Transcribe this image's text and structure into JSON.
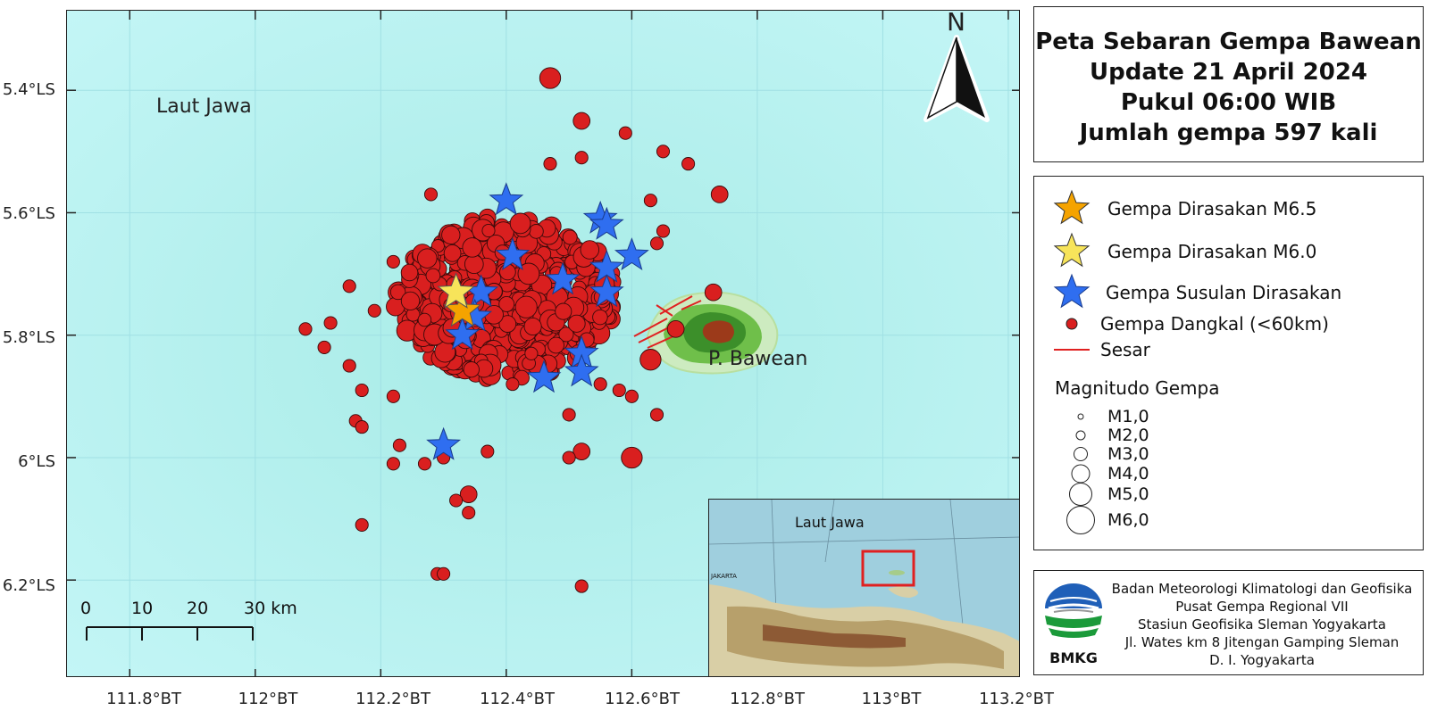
{
  "title": {
    "line1": "Peta Sebaran Gempa Bawean",
    "line2": "Update 21 April 2024",
    "line3": "Pukul 06:00 WIB",
    "line4": "Jumlah gempa 597 kali"
  },
  "map": {
    "sea_label": "Laut Jawa",
    "island_label": "P. Bawean",
    "north_label": "N",
    "colors": {
      "sea": "#b8f3f2",
      "quake": "#d91f1f",
      "aftershock_star": "#2f6ef0",
      "mainshock_m65": "#f5a300",
      "mainshock_m60": "#f7e45a",
      "fault": "#e02020"
    }
  },
  "axes": {
    "y_ticks": [
      "5.4°LS",
      "5.6°LS",
      "5.8°LS",
      "6°LS",
      "6.2°LS"
    ],
    "x_ticks": [
      "111.8°BT",
      "112°BT",
      "112.2°BT",
      "112.4°BT",
      "112.6°BT",
      "112.8°BT",
      "113°BT",
      "113.2°BT"
    ],
    "lon_values": [
      111.8,
      112.0,
      112.2,
      112.4,
      112.6,
      112.8,
      113.0,
      113.2
    ],
    "lat_values": [
      -5.4,
      -5.6,
      -5.8,
      -6.0,
      -6.2
    ],
    "lon_range": [
      111.7,
      113.22
    ],
    "lat_range": [
      -5.27,
      -6.36
    ]
  },
  "scale_bar": {
    "labels": [
      "0",
      "10",
      "20",
      "30 km"
    ]
  },
  "inset": {
    "sea_label": "Laut Jawa",
    "coast_label": "JAKARTA"
  },
  "legend": {
    "m65": "Gempa Dirasakan M6.5",
    "m60": "Gempa Dirasakan M6.0",
    "aftershock": "Gempa Susulan Dirasakan",
    "shallow": "Gempa Dangkal (<60km)",
    "fault": "Sesar",
    "magnitude_heading": "Magnitudo Gempa",
    "magnitudes": [
      "M1,0",
      "M2,0",
      "M3,0",
      "M4,0",
      "M5,0",
      "M6,0"
    ]
  },
  "org": {
    "line1": "Badan Meteorologi Klimatologi dan Geofisika",
    "line2": "Pusat Gempa Regional VII",
    "line3": "Stasiun Geofisika Sleman Yogyakarta",
    "line4": "Jl. Wates km 8 Jitengan Gamping Sleman",
    "line5": "D. I. Yogyakarta",
    "logo_text": "BMKG"
  },
  "map_data": {
    "mainshocks": [
      {
        "magnitude_label": "M6.5",
        "lon": 112.33,
        "lat": -5.76
      },
      {
        "magnitude_label": "M6.0",
        "lon": 112.32,
        "lat": -5.73
      }
    ],
    "aftershocks_felt": [
      {
        "lon": 112.4,
        "lat": -5.58
      },
      {
        "lon": 112.55,
        "lat": -5.61
      },
      {
        "lon": 112.56,
        "lat": -5.62
      },
      {
        "lon": 112.41,
        "lat": -5.67
      },
      {
        "lon": 112.6,
        "lat": -5.67
      },
      {
        "lon": 112.56,
        "lat": -5.69
      },
      {
        "lon": 112.49,
        "lat": -5.71
      },
      {
        "lon": 112.36,
        "lat": -5.73
      },
      {
        "lon": 112.56,
        "lat": -5.73
      },
      {
        "lon": 112.35,
        "lat": -5.77
      },
      {
        "lon": 112.33,
        "lat": -5.8
      },
      {
        "lon": 112.52,
        "lat": -5.83
      },
      {
        "lon": 112.52,
        "lat": -5.86
      },
      {
        "lon": 112.46,
        "lat": -5.87
      },
      {
        "lon": 112.3,
        "lat": -5.98
      }
    ],
    "shallow_quakes": [
      {
        "lon": 112.47,
        "lat": -5.38,
        "mag": 4
      },
      {
        "lon": 112.52,
        "lat": -5.45,
        "mag": 3
      },
      {
        "lon": 112.59,
        "lat": -5.47,
        "mag": 2
      },
      {
        "lon": 112.65,
        "lat": -5.5,
        "mag": 2
      },
      {
        "lon": 112.52,
        "lat": -5.51,
        "mag": 2
      },
      {
        "lon": 112.47,
        "lat": -5.52,
        "mag": 2
      },
      {
        "lon": 112.69,
        "lat": -5.52,
        "mag": 2
      },
      {
        "lon": 112.74,
        "lat": -5.57,
        "mag": 3
      },
      {
        "lon": 112.63,
        "lat": -5.58,
        "mag": 2
      },
      {
        "lon": 112.65,
        "lat": -5.63,
        "mag": 2
      },
      {
        "lon": 112.64,
        "lat": -5.65,
        "mag": 2
      },
      {
        "lon": 112.73,
        "lat": -5.73,
        "mag": 3
      },
      {
        "lon": 112.67,
        "lat": -5.79,
        "mag": 3
      },
      {
        "lon": 112.63,
        "lat": -5.84,
        "mag": 4
      },
      {
        "lon": 112.64,
        "lat": -5.93,
        "mag": 2
      },
      {
        "lon": 112.6,
        "lat": -5.9,
        "mag": 2
      },
      {
        "lon": 112.6,
        "lat": -6.0,
        "mag": 4
      },
      {
        "lon": 112.52,
        "lat": -5.99,
        "mag": 3
      },
      {
        "lon": 112.5,
        "lat": -6.0,
        "mag": 2
      },
      {
        "lon": 112.5,
        "lat": -5.93,
        "mag": 2
      },
      {
        "lon": 112.55,
        "lat": -5.88,
        "mag": 2
      },
      {
        "lon": 112.58,
        "lat": -5.89,
        "mag": 2
      },
      {
        "lon": 112.52,
        "lat": -6.21,
        "mag": 2
      },
      {
        "lon": 112.34,
        "lat": -6.06,
        "mag": 3
      },
      {
        "lon": 112.32,
        "lat": -6.07,
        "mag": 2
      },
      {
        "lon": 112.34,
        "lat": -6.09,
        "mag": 2
      },
      {
        "lon": 112.29,
        "lat": -6.19,
        "mag": 2
      },
      {
        "lon": 112.3,
        "lat": -6.19,
        "mag": 2
      },
      {
        "lon": 112.17,
        "lat": -6.11,
        "mag": 2
      },
      {
        "lon": 112.22,
        "lat": -6.01,
        "mag": 2
      },
      {
        "lon": 112.27,
        "lat": -6.01,
        "mag": 2
      },
      {
        "lon": 112.3,
        "lat": -6.0,
        "mag": 2
      },
      {
        "lon": 112.37,
        "lat": -5.99,
        "mag": 2
      },
      {
        "lon": 112.23,
        "lat": -5.98,
        "mag": 2
      },
      {
        "lon": 112.16,
        "lat": -5.94,
        "mag": 2
      },
      {
        "lon": 112.17,
        "lat": -5.95,
        "mag": 2
      },
      {
        "lon": 112.08,
        "lat": -5.79,
        "mag": 2
      },
      {
        "lon": 112.12,
        "lat": -5.78,
        "mag": 2
      },
      {
        "lon": 112.11,
        "lat": -5.82,
        "mag": 2
      },
      {
        "lon": 112.15,
        "lat": -5.72,
        "mag": 2
      },
      {
        "lon": 112.17,
        "lat": -5.89,
        "mag": 2
      },
      {
        "lon": 112.15,
        "lat": -5.85,
        "mag": 2
      },
      {
        "lon": 112.28,
        "lat": -5.57,
        "mag": 2
      },
      {
        "lon": 112.22,
        "lat": -5.68,
        "mag": 2
      },
      {
        "lon": 112.19,
        "lat": -5.76,
        "mag": 2
      },
      {
        "lon": 112.22,
        "lat": -5.9,
        "mag": 2
      },
      {
        "lon": 112.41,
        "lat": -5.88,
        "mag": 2
      },
      {
        "lon": 112.44,
        "lat": -5.83,
        "mag": 2
      }
    ],
    "cluster_center": {
      "lon": 112.4,
      "lat": -5.74
    }
  }
}
